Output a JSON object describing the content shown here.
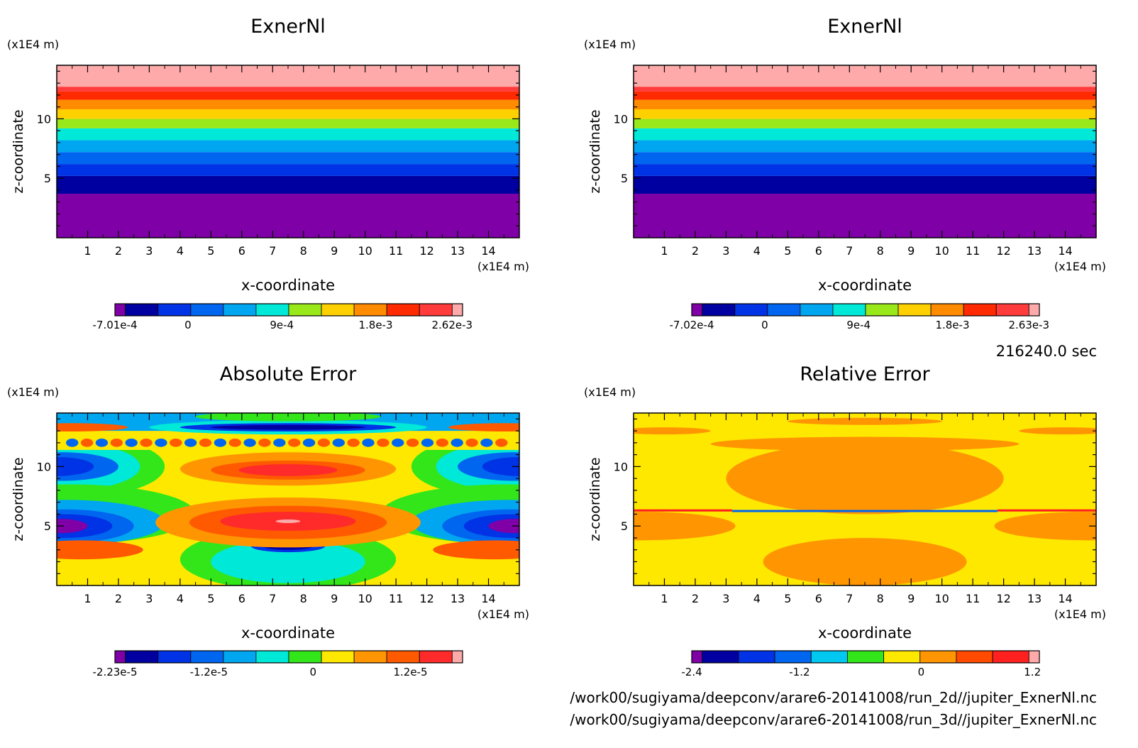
{
  "footer": {
    "time": "216240.0 sec",
    "paths": [
      "/work00/sugiyama/deepconv/arare6-20141008/run_2d//jupiter_ExnerNl.nc",
      "/work00/sugiyama/deepconv/arare6-20141008/run_3d//jupiter_ExnerNl.nc"
    ]
  },
  "chart_data": [
    {
      "type": "heatmap",
      "title": "ExnerNl",
      "xlabel": "x-coordinate",
      "ylabel": "z-coordinate",
      "xunit": "(x1E4 m)",
      "yunit": "(x1E4 m)",
      "xlim": [
        0,
        15
      ],
      "ylim": [
        0,
        14.5
      ],
      "xticks": [
        "1",
        "2",
        "3",
        "4",
        "5",
        "6",
        "7",
        "8",
        "9",
        "10",
        "11",
        "12",
        "13",
        "14"
      ],
      "yticks": [
        "5",
        "10"
      ],
      "pattern": "horizontal-layers",
      "bands": [
        {
          "z0": 0,
          "z1": 3.7,
          "color": "#8000a8"
        },
        {
          "z0": 3.7,
          "z1": 5.2,
          "color": "#0000a0"
        },
        {
          "z0": 5.2,
          "z1": 6.2,
          "color": "#0032e6"
        },
        {
          "z0": 6.2,
          "z1": 7.2,
          "color": "#0066f0"
        },
        {
          "z0": 7.2,
          "z1": 8.2,
          "color": "#00a6f0"
        },
        {
          "z0": 8.2,
          "z1": 9.2,
          "color": "#00e8d8"
        },
        {
          "z0": 9.2,
          "z1": 10.0,
          "color": "#99e81a"
        },
        {
          "z0": 10.0,
          "z1": 10.8,
          "color": "#ffd000"
        },
        {
          "z0": 10.8,
          "z1": 11.6,
          "color": "#ff8c00"
        },
        {
          "z0": 11.6,
          "z1": 12.3,
          "color": "#ff2a00"
        },
        {
          "z0": 12.3,
          "z1": 12.7,
          "color": "#ff3b3b"
        },
        {
          "z0": 12.7,
          "z1": 14.5,
          "color": "#ffaaaa"
        }
      ],
      "colorbar": {
        "colors": [
          "#8000a8",
          "#0000a0",
          "#0032e6",
          "#0066f0",
          "#00a6f0",
          "#00e8d8",
          "#99e81a",
          "#ffd000",
          "#ff8c00",
          "#ff2a00",
          "#ff3b3b",
          "#ffaaaa"
        ],
        "labels": [
          "-7.01e-4",
          "0",
          "9e-4",
          "1.8e-3",
          "2.62e-3"
        ]
      }
    },
    {
      "type": "heatmap",
      "title": "ExnerNl",
      "xlabel": "x-coordinate",
      "ylabel": "z-coordinate",
      "xunit": "(x1E4 m)",
      "yunit": "(x1E4 m)",
      "xlim": [
        0,
        15
      ],
      "ylim": [
        0,
        14.5
      ],
      "xticks": [
        "1",
        "2",
        "3",
        "4",
        "5",
        "6",
        "7",
        "8",
        "9",
        "10",
        "11",
        "12",
        "13",
        "14"
      ],
      "yticks": [
        "5",
        "10"
      ],
      "pattern": "horizontal-layers",
      "bands": [
        {
          "z0": 0,
          "z1": 3.7,
          "color": "#8000a8"
        },
        {
          "z0": 3.7,
          "z1": 5.2,
          "color": "#0000a0"
        },
        {
          "z0": 5.2,
          "z1": 6.2,
          "color": "#0032e6"
        },
        {
          "z0": 6.2,
          "z1": 7.2,
          "color": "#0066f0"
        },
        {
          "z0": 7.2,
          "z1": 8.2,
          "color": "#00a6f0"
        },
        {
          "z0": 8.2,
          "z1": 9.2,
          "color": "#00e8d8"
        },
        {
          "z0": 9.2,
          "z1": 10.0,
          "color": "#99e81a"
        },
        {
          "z0": 10.0,
          "z1": 10.8,
          "color": "#ffd000"
        },
        {
          "z0": 10.8,
          "z1": 11.6,
          "color": "#ff8c00"
        },
        {
          "z0": 11.6,
          "z1": 12.3,
          "color": "#ff2a00"
        },
        {
          "z0": 12.3,
          "z1": 12.7,
          "color": "#ff3b3b"
        },
        {
          "z0": 12.7,
          "z1": 14.5,
          "color": "#ffaaaa"
        }
      ],
      "colorbar": {
        "colors": [
          "#8000a8",
          "#0000a0",
          "#0032e6",
          "#0066f0",
          "#00a6f0",
          "#00e8d8",
          "#99e81a",
          "#ffd000",
          "#ff8c00",
          "#ff2a00",
          "#ff3b3b",
          "#ffaaaa"
        ],
        "labels": [
          "-7.02e-4",
          "0",
          "9e-4",
          "1.8e-3",
          "2.63e-3"
        ]
      }
    },
    {
      "type": "heatmap",
      "title": "Absolute Error",
      "xlabel": "x-coordinate",
      "ylabel": "z-coordinate",
      "xunit": "(x1E4 m)",
      "yunit": "(x1E4 m)",
      "xlim": [
        0,
        15
      ],
      "ylim": [
        0,
        14.5
      ],
      "xticks": [
        "1",
        "2",
        "3",
        "4",
        "5",
        "6",
        "7",
        "8",
        "9",
        "10",
        "11",
        "12",
        "13",
        "14"
      ],
      "yticks": [
        "5",
        "10"
      ],
      "pattern": "absolute-error",
      "background": "#ffe800",
      "colorbar": {
        "colors": [
          "#8000a8",
          "#0000a0",
          "#0032e6",
          "#0066f0",
          "#00a6f0",
          "#00e8d8",
          "#33e61a",
          "#ffe800",
          "#ff9500",
          "#ff5a00",
          "#ff2a2a",
          "#ffaaaa"
        ],
        "labels": [
          "-2.23e-5",
          "-1.2e-5",
          "0",
          "1.2e-5"
        ]
      }
    },
    {
      "type": "heatmap",
      "title": "Relative Error",
      "xlabel": "x-coordinate",
      "ylabel": "z-coordinate",
      "xunit": "(x1E4 m)",
      "yunit": "(x1E4 m)",
      "xlim": [
        0,
        15
      ],
      "ylim": [
        0,
        14.5
      ],
      "xticks": [
        "1",
        "2",
        "3",
        "4",
        "5",
        "6",
        "7",
        "8",
        "9",
        "10",
        "11",
        "12",
        "13",
        "14"
      ],
      "yticks": [
        "5",
        "10"
      ],
      "pattern": "relative-error",
      "background": "#ffe800",
      "colorbar": {
        "colors": [
          "#8000a8",
          "#0000a0",
          "#0032e6",
          "#0066f0",
          "#00c8f0",
          "#33e61a",
          "#ffe800",
          "#ff9500",
          "#ff4a00",
          "#ff2020",
          "#ffaaaa"
        ],
        "labels": [
          "-2.4",
          "-1.2",
          "0",
          "1.2"
        ]
      }
    }
  ]
}
